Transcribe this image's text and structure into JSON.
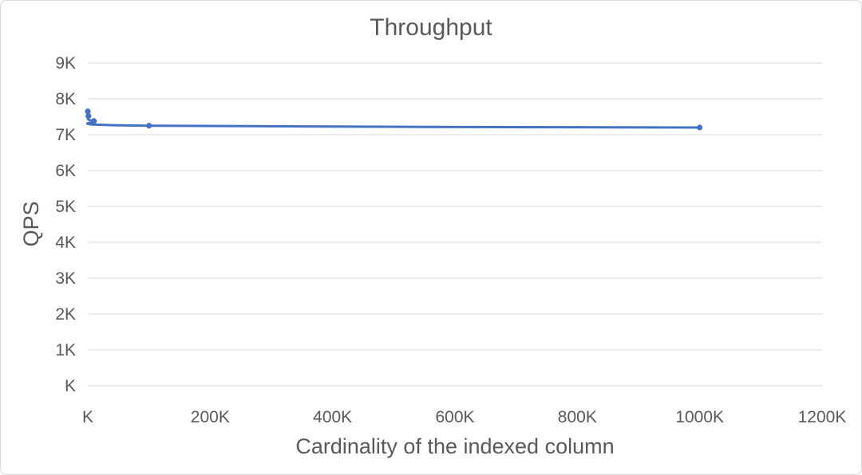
{
  "chart_data": {
    "type": "scatter",
    "title": "Throughput",
    "xlabel": "Cardinality of the indexed column",
    "ylabel": "QPS",
    "xlim": [
      0,
      1200000
    ],
    "ylim": [
      0,
      9000
    ],
    "x_ticks": [
      {
        "value": 0,
        "label": "K"
      },
      {
        "value": 200000,
        "label": "200K"
      },
      {
        "value": 400000,
        "label": "400K"
      },
      {
        "value": 600000,
        "label": "600K"
      },
      {
        "value": 800000,
        "label": "800K"
      },
      {
        "value": 1000000,
        "label": "1000K"
      },
      {
        "value": 1200000,
        "label": "1200K"
      }
    ],
    "y_ticks": [
      {
        "value": 0,
        "label": "K"
      },
      {
        "value": 1000,
        "label": "1K"
      },
      {
        "value": 2000,
        "label": "2K"
      },
      {
        "value": 3000,
        "label": "3K"
      },
      {
        "value": 4000,
        "label": "4K"
      },
      {
        "value": 5000,
        "label": "5K"
      },
      {
        "value": 6000,
        "label": "6K"
      },
      {
        "value": 7000,
        "label": "7K"
      },
      {
        "value": 8000,
        "label": "8K"
      },
      {
        "value": 9000,
        "label": "9K"
      }
    ],
    "grid": true,
    "legend": "none",
    "smooth": true,
    "series": [
      {
        "color": "#4472c4",
        "points": [
          {
            "x": 10,
            "y": 7650
          },
          {
            "x": 1000,
            "y": 7520
          },
          {
            "x": 10000,
            "y": 7380
          },
          {
            "x": 100000,
            "y": 7250
          },
          {
            "x": 1000000,
            "y": 7200
          }
        ]
      }
    ]
  }
}
